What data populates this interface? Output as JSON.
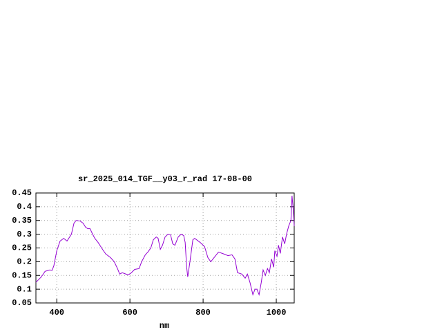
{
  "chart_data": {
    "type": "line",
    "title": "sr_2025_014_TGF__y03_r_rad 17-08-00",
    "x_label": "nm",
    "xlim": [
      343,
      1049
    ],
    "ylim": [
      0.05,
      0.45
    ],
    "xticks": [
      400,
      600,
      800,
      1000
    ],
    "yticks": [
      0.05,
      0.1,
      0.15,
      0.2,
      0.25,
      0.3,
      0.35,
      0.4,
      0.45
    ],
    "grid": true,
    "x": [
      343,
      358,
      368,
      381,
      387,
      392,
      400,
      409,
      419,
      428,
      440,
      447,
      453,
      464,
      472,
      479,
      485,
      491,
      498,
      504,
      513,
      525,
      534,
      547,
      557,
      566,
      572,
      579,
      589,
      596,
      604,
      613,
      625,
      632,
      642,
      649,
      657,
      664,
      672,
      677,
      683,
      689,
      696,
      704,
      711,
      717,
      723,
      732,
      740,
      747,
      751,
      755,
      758,
      764,
      772,
      777,
      792,
      804,
      813,
      821,
      830,
      842,
      857,
      868,
      879,
      887,
      894,
      906,
      915,
      921,
      928,
      936,
      942,
      947,
      953,
      959,
      964,
      970,
      976,
      981,
      987,
      993,
      996,
      1002,
      1006,
      1011,
      1017,
      1023,
      1028,
      1034,
      1040,
      1043,
      1047,
      1049
    ],
    "series": [
      {
        "color": "#9400d3",
        "values": [
          0.125,
          0.145,
          0.165,
          0.17,
          0.168,
          0.185,
          0.24,
          0.275,
          0.285,
          0.275,
          0.3,
          0.34,
          0.35,
          0.348,
          0.34,
          0.325,
          0.32,
          0.32,
          0.3,
          0.285,
          0.27,
          0.245,
          0.228,
          0.215,
          0.2,
          0.175,
          0.155,
          0.16,
          0.155,
          0.152,
          0.16,
          0.172,
          0.175,
          0.2,
          0.225,
          0.235,
          0.25,
          0.28,
          0.29,
          0.285,
          0.245,
          0.26,
          0.29,
          0.3,
          0.298,
          0.265,
          0.26,
          0.29,
          0.3,
          0.295,
          0.27,
          0.18,
          0.145,
          0.2,
          0.28,
          0.285,
          0.27,
          0.255,
          0.215,
          0.2,
          0.215,
          0.235,
          0.228,
          0.222,
          0.225,
          0.21,
          0.16,
          0.155,
          0.14,
          0.155,
          0.125,
          0.08,
          0.1,
          0.1,
          0.08,
          0.125,
          0.17,
          0.15,
          0.175,
          0.16,
          0.21,
          0.18,
          0.24,
          0.22,
          0.26,
          0.23,
          0.29,
          0.265,
          0.3,
          0.33,
          0.35,
          0.44,
          0.38,
          0.33
        ]
      }
    ]
  }
}
